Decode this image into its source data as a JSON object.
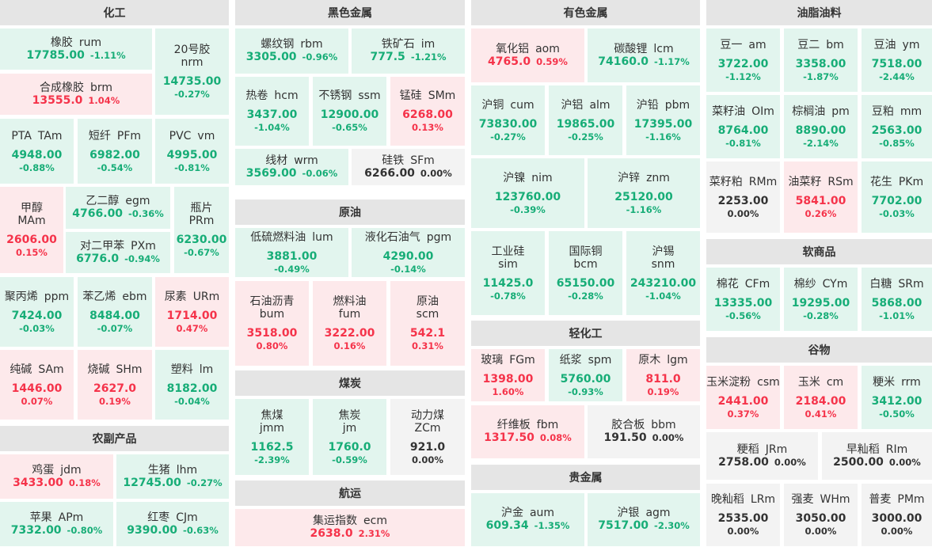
{
  "colors": {
    "up": "#f5334a",
    "down": "#17ad77",
    "flat": "#333333",
    "up_bg": "#fde9eb",
    "down_bg": "#e2f5ee",
    "flat_bg": "#f3f3f3",
    "header_bg": "#e5e5e5"
  },
  "sections": [
    {
      "title": "化工",
      "items": [
        {
          "name": "橡胶",
          "code": "rum",
          "price": "17785.00",
          "change": "-1.11%",
          "trend": "down"
        },
        {
          "name": "合成橡胶",
          "code": "brm",
          "price": "13555.0",
          "change": "1.04%",
          "trend": "up"
        },
        {
          "name": "20号胶",
          "code": "nrm",
          "price": "14735.00",
          "change": "-0.27%",
          "trend": "down"
        },
        {
          "name": "PTA",
          "code": "TAm",
          "price": "4948.00",
          "change": "-0.88%",
          "trend": "down"
        },
        {
          "name": "短纤",
          "code": "PFm",
          "price": "6982.00",
          "change": "-0.54%",
          "trend": "down"
        },
        {
          "name": "PVC",
          "code": "vm",
          "price": "4995.00",
          "change": "-0.81%",
          "trend": "down"
        },
        {
          "name": "甲醇",
          "code": "MAm",
          "price": "2606.00",
          "change": "0.15%",
          "trend": "up"
        },
        {
          "name": "乙二醇",
          "code": "egm",
          "price": "4766.00",
          "change": "-0.36%",
          "trend": "down"
        },
        {
          "name": "对二甲苯",
          "code": "PXm",
          "price": "6776.0",
          "change": "-0.94%",
          "trend": "down"
        },
        {
          "name": "瓶片",
          "code": "PRm",
          "price": "6230.00",
          "change": "-0.67%",
          "trend": "down"
        },
        {
          "name": "聚丙烯",
          "code": "ppm",
          "price": "7424.00",
          "change": "-0.03%",
          "trend": "down"
        },
        {
          "name": "苯乙烯",
          "code": "ebm",
          "price": "8484.00",
          "change": "-0.07%",
          "trend": "down"
        },
        {
          "name": "尿素",
          "code": "URm",
          "price": "1714.00",
          "change": "0.47%",
          "trend": "up"
        },
        {
          "name": "纯碱",
          "code": "SAm",
          "price": "1446.00",
          "change": "0.07%",
          "trend": "up"
        },
        {
          "name": "烧碱",
          "code": "SHm",
          "price": "2627.0",
          "change": "0.19%",
          "trend": "up"
        },
        {
          "name": "塑料",
          "code": "lm",
          "price": "8182.00",
          "change": "-0.04%",
          "trend": "down"
        }
      ]
    },
    {
      "title": "农副产品",
      "items": [
        {
          "name": "鸡蛋",
          "code": "jdm",
          "price": "3433.00",
          "change": "0.18%",
          "trend": "up"
        },
        {
          "name": "生猪",
          "code": "lhm",
          "price": "12745.00",
          "change": "-0.27%",
          "trend": "down"
        },
        {
          "name": "苹果",
          "code": "APm",
          "price": "7332.00",
          "change": "-0.80%",
          "trend": "down"
        },
        {
          "name": "红枣",
          "code": "CJm",
          "price": "9390.00",
          "change": "-0.63%",
          "trend": "down"
        }
      ]
    },
    {
      "title": "黑色金属",
      "items": [
        {
          "name": "螺纹钢",
          "code": "rbm",
          "price": "3305.00",
          "change": "-0.96%",
          "trend": "down"
        },
        {
          "name": "铁矿石",
          "code": "im",
          "price": "777.5",
          "change": "-1.21%",
          "trend": "down"
        },
        {
          "name": "热卷",
          "code": "hcm",
          "price": "3437.00",
          "change": "-1.04%",
          "trend": "down"
        },
        {
          "name": "不锈钢",
          "code": "ssm",
          "price": "12900.00",
          "change": "-0.65%",
          "trend": "down"
        },
        {
          "name": "锰硅",
          "code": "SMm",
          "price": "6268.00",
          "change": "0.13%",
          "trend": "up"
        },
        {
          "name": "线材",
          "code": "wrm",
          "price": "3569.00",
          "change": "-0.06%",
          "trend": "down"
        },
        {
          "name": "硅铁",
          "code": "SFm",
          "price": "6266.00",
          "change": "0.00%",
          "trend": "flat"
        }
      ]
    },
    {
      "title": "原油",
      "items": [
        {
          "name": "低硫燃料油",
          "code": "lum",
          "price": "3881.00",
          "change": "-0.49%",
          "trend": "down"
        },
        {
          "name": "液化石油气",
          "code": "pgm",
          "price": "4290.00",
          "change": "-0.14%",
          "trend": "down"
        },
        {
          "name": "石油沥青",
          "code": "bum",
          "price": "3518.00",
          "change": "0.80%",
          "trend": "up"
        },
        {
          "name": "燃料油",
          "code": "fum",
          "price": "3222.00",
          "change": "0.16%",
          "trend": "up"
        },
        {
          "name": "原油",
          "code": "scm",
          "price": "542.1",
          "change": "0.31%",
          "trend": "up"
        }
      ]
    },
    {
      "title": "煤炭",
      "items": [
        {
          "name": "焦煤",
          "code": "jmm",
          "price": "1162.5",
          "change": "-2.39%",
          "trend": "down"
        },
        {
          "name": "焦炭",
          "code": "jm",
          "price": "1760.0",
          "change": "-0.59%",
          "trend": "down"
        },
        {
          "name": "动力煤",
          "code": "ZCm",
          "price": "921.0",
          "change": "0.00%",
          "trend": "flat"
        }
      ]
    },
    {
      "title": "航运",
      "items": [
        {
          "name": "集运指数",
          "code": "ecm",
          "price": "2638.0",
          "change": "2.31%",
          "trend": "up"
        }
      ]
    },
    {
      "title": "有色金属",
      "items": [
        {
          "name": "氧化铝",
          "code": "aom",
          "price": "4765.0",
          "change": "0.59%",
          "trend": "up"
        },
        {
          "name": "碳酸锂",
          "code": "lcm",
          "price": "74160.0",
          "change": "-1.17%",
          "trend": "down"
        },
        {
          "name": "沪铜",
          "code": "cum",
          "price": "73830.00",
          "change": "-0.27%",
          "trend": "down"
        },
        {
          "name": "沪铝",
          "code": "alm",
          "price": "19865.00",
          "change": "-0.25%",
          "trend": "down"
        },
        {
          "name": "沪铅",
          "code": "pbm",
          "price": "17395.00",
          "change": "-1.16%",
          "trend": "down"
        },
        {
          "name": "沪镍",
          "code": "nim",
          "price": "123760.00",
          "change": "-0.39%",
          "trend": "down"
        },
        {
          "name": "沪锌",
          "code": "znm",
          "price": "25120.00",
          "change": "-1.16%",
          "trend": "down"
        },
        {
          "name": "工业硅",
          "code": "sim",
          "price": "11425.0",
          "change": "-0.78%",
          "trend": "down"
        },
        {
          "name": "国际铜",
          "code": "bcm",
          "price": "65150.00",
          "change": "-0.28%",
          "trend": "down"
        },
        {
          "name": "沪锡",
          "code": "snm",
          "price": "243210.00",
          "change": "-1.04%",
          "trend": "down"
        }
      ]
    },
    {
      "title": "轻化工",
      "items": [
        {
          "name": "玻璃",
          "code": "FGm",
          "price": "1398.00",
          "change": "1.60%",
          "trend": "up"
        },
        {
          "name": "纸浆",
          "code": "spm",
          "price": "5760.00",
          "change": "-0.93%",
          "trend": "down"
        },
        {
          "name": "原木",
          "code": "lgm",
          "price": "811.0",
          "change": "0.19%",
          "trend": "up"
        },
        {
          "name": "纤维板",
          "code": "fbm",
          "price": "1317.50",
          "change": "0.08%",
          "trend": "up"
        },
        {
          "name": "胶合板",
          "code": "bbm",
          "price": "191.50",
          "change": "0.00%",
          "trend": "flat"
        }
      ]
    },
    {
      "title": "贵金属",
      "items": [
        {
          "name": "沪金",
          "code": "aum",
          "price": "609.34",
          "change": "-1.35%",
          "trend": "down"
        },
        {
          "name": "沪银",
          "code": "agm",
          "price": "7517.00",
          "change": "-2.30%",
          "trend": "down"
        }
      ]
    },
    {
      "title": "油脂油料",
      "items": [
        {
          "name": "豆一",
          "code": "am",
          "price": "3722.00",
          "change": "-1.12%",
          "trend": "down"
        },
        {
          "name": "豆二",
          "code": "bm",
          "price": "3358.00",
          "change": "-1.87%",
          "trend": "down"
        },
        {
          "name": "豆油",
          "code": "ym",
          "price": "7518.00",
          "change": "-2.44%",
          "trend": "down"
        },
        {
          "name": "菜籽油",
          "code": "OIm",
          "price": "8764.00",
          "change": "-0.81%",
          "trend": "down"
        },
        {
          "name": "棕榈油",
          "code": "pm",
          "price": "8890.00",
          "change": "-2.14%",
          "trend": "down"
        },
        {
          "name": "豆粕",
          "code": "mm",
          "price": "2563.00",
          "change": "-0.85%",
          "trend": "down"
        },
        {
          "name": "菜籽粕",
          "code": "RMm",
          "price": "2253.00",
          "change": "0.00%",
          "trend": "flat"
        },
        {
          "name": "油菜籽",
          "code": "RSm",
          "price": "5841.00",
          "change": "0.26%",
          "trend": "up"
        },
        {
          "name": "花生",
          "code": "PKm",
          "price": "7702.00",
          "change": "-0.03%",
          "trend": "down"
        }
      ]
    },
    {
      "title": "软商品",
      "items": [
        {
          "name": "棉花",
          "code": "CFm",
          "price": "13335.00",
          "change": "-0.56%",
          "trend": "down"
        },
        {
          "name": "棉纱",
          "code": "CYm",
          "price": "19295.00",
          "change": "-0.28%",
          "trend": "down"
        },
        {
          "name": "白糖",
          "code": "SRm",
          "price": "5868.00",
          "change": "-1.01%",
          "trend": "down"
        }
      ]
    },
    {
      "title": "谷物",
      "items": [
        {
          "name": "玉米淀粉",
          "code": "csm",
          "price": "2441.00",
          "change": "0.37%",
          "trend": "up"
        },
        {
          "name": "玉米",
          "code": "cm",
          "price": "2184.00",
          "change": "0.41%",
          "trend": "up"
        },
        {
          "name": "粳米",
          "code": "rrm",
          "price": "3412.00",
          "change": "-0.50%",
          "trend": "down"
        },
        {
          "name": "粳稻",
          "code": "JRm",
          "price": "2758.00",
          "change": "0.00%",
          "trend": "flat"
        },
        {
          "name": "早籼稻",
          "code": "RIm",
          "price": "2500.00",
          "change": "0.00%",
          "trend": "flat"
        },
        {
          "name": "晚籼稻",
          "code": "LRm",
          "price": "2535.00",
          "change": "0.00%",
          "trend": "flat"
        },
        {
          "name": "强麦",
          "code": "WHm",
          "price": "3050.00",
          "change": "0.00%",
          "trend": "flat"
        },
        {
          "name": "普麦",
          "code": "PMm",
          "price": "3000.00",
          "change": "0.00%",
          "trend": "flat"
        }
      ]
    }
  ]
}
